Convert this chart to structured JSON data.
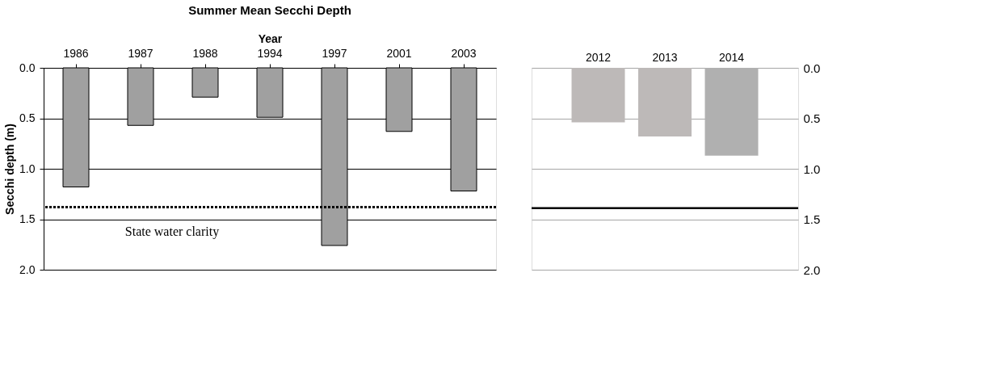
{
  "chart_data": [
    {
      "type": "bar",
      "title": "Summer Mean Secchi Depth",
      "xlabel": "Year",
      "ylabel": "Secchi depth (m)",
      "categories": [
        "1986",
        "1987",
        "1988",
        "1994",
        "1997",
        "2001",
        "2003"
      ],
      "values": [
        1.18,
        0.57,
        0.29,
        0.49,
        1.76,
        0.63,
        1.22
      ],
      "color": "#a0a0a0",
      "ylim": [
        2.0,
        0.0
      ],
      "yticks": [
        {
          "value": 0,
          "label": "0.0"
        },
        {
          "value": 0.5,
          "label": "0.5"
        },
        {
          "value": 1,
          "label": "1.0"
        },
        {
          "value": 1.5,
          "label": "1.5"
        },
        {
          "value": 2,
          "label": "2.0"
        }
      ],
      "grid": "y",
      "ref_lines": [
        {
          "axis": "y",
          "value": 1.38,
          "label": "State water clarity",
          "color": "#000000",
          "line_style": "dotted"
        }
      ]
    },
    {
      "type": "bar",
      "categories": [
        "2012",
        "2013",
        "2014"
      ],
      "values": [
        0.54,
        0.68,
        0.87
      ],
      "colors": [
        "#bdb9b8",
        "#bdb9b8",
        "#b0b0b0"
      ],
      "ylim": [
        2.0,
        0.0
      ],
      "yticks": [
        {
          "value": 0,
          "label": "0.0"
        },
        {
          "value": 0.5,
          "label": "0.5"
        },
        {
          "value": 1,
          "label": "1.0"
        },
        {
          "value": 1.5,
          "label": "1.5"
        },
        {
          "value": 2,
          "label": "2.0"
        }
      ],
      "grid": "y",
      "ref_lines": [
        {
          "axis": "y",
          "value": 1.39,
          "color": "#000000",
          "line_style": "solid"
        }
      ]
    }
  ]
}
